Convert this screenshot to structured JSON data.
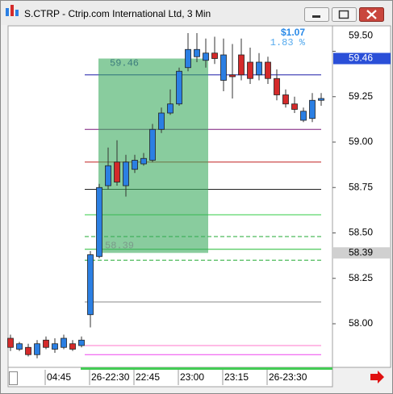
{
  "chart_data": {
    "type": "candlestick",
    "title": "S.CTRP - Ctrip.com International Ltd, 3 Min",
    "categories": [
      null,
      null,
      null,
      null,
      "04:45",
      null,
      null,
      null,
      null,
      "26-22:30",
      null,
      null,
      null,
      null,
      "22:45",
      null,
      null,
      null,
      null,
      "23:00",
      null,
      null,
      null,
      null,
      "23:15",
      null,
      null,
      null,
      null,
      "26-23:30",
      null,
      null,
      null,
      null,
      null,
      null
    ],
    "open": [
      57.92,
      57.86,
      57.87,
      57.83,
      57.91,
      57.86,
      57.87,
      57.89,
      57.88,
      58.05,
      58.37,
      58.76,
      58.89,
      58.76,
      58.85,
      58.88,
      58.9,
      59.07,
      59.16,
      59.21,
      59.41,
      59.47,
      59.45,
      59.49,
      59.34,
      59.37,
      59.48,
      59.44,
      59.37,
      59.44,
      59.35,
      59.26,
      59.21,
      59.12,
      59.13,
      59.23
    ],
    "high": [
      57.94,
      57.9,
      57.89,
      57.91,
      57.93,
      57.92,
      57.94,
      57.91,
      57.93,
      58.4,
      58.77,
      58.97,
      59.01,
      58.93,
      58.93,
      58.94,
      59.1,
      59.19,
      59.29,
      59.41,
      59.6,
      59.6,
      59.57,
      59.58,
      59.57,
      59.54,
      59.57,
      59.52,
      59.49,
      59.47,
      59.4,
      59.29,
      59.25,
      59.19,
      59.27,
      59.27
    ],
    "low": [
      57.85,
      57.85,
      57.82,
      57.81,
      57.86,
      57.84,
      57.86,
      57.85,
      57.87,
      57.98,
      58.36,
      58.74,
      58.76,
      58.7,
      58.83,
      58.87,
      58.89,
      59.05,
      59.15,
      59.2,
      59.39,
      59.44,
      59.41,
      59.43,
      59.28,
      59.24,
      59.34,
      59.32,
      59.34,
      59.32,
      59.23,
      59.19,
      59.16,
      59.11,
      59.11,
      59.2
    ],
    "close": [
      57.87,
      57.89,
      57.83,
      57.89,
      57.87,
      57.89,
      57.92,
      57.86,
      57.91,
      58.38,
      58.75,
      58.87,
      58.78,
      58.89,
      58.9,
      58.91,
      59.07,
      59.16,
      59.21,
      59.39,
      59.51,
      59.51,
      59.49,
      59.46,
      59.48,
      59.36,
      59.37,
      59.35,
      59.44,
      59.35,
      59.26,
      59.21,
      59.18,
      59.17,
      59.23,
      59.24
    ],
    "up_color": "#2b7fe3",
    "down_color": "#d42a2a",
    "ylim": [
      57.76,
      59.64
    ],
    "yticks": [
      {
        "value": 58,
        "label": "58.00"
      },
      {
        "value": 58.25,
        "label": "58.25"
      },
      {
        "value": 58.5,
        "label": "58.50"
      },
      {
        "value": 58.75,
        "label": "58.75"
      },
      {
        "value": 59,
        "label": "59.00"
      },
      {
        "value": 59.25,
        "label": "59.25"
      },
      {
        "value": 59.5,
        "label": "59.50"
      }
    ],
    "levels": {
      "values": [
        59.37,
        59.07,
        58.89,
        58.74,
        58.6,
        58.48,
        58.41,
        58.35,
        58.12,
        57.88,
        57.83
      ],
      "colors": [
        "#1c1ca8",
        "#7b1c7b",
        "#c02020",
        "#222222",
        "#33cc44",
        "#22aa33",
        "#22bb33",
        "#22aa33",
        "#888888",
        "#ff77cc",
        "#ee44ee"
      ],
      "dashed": [
        false,
        false,
        false,
        false,
        false,
        true,
        false,
        true,
        false,
        false,
        false
      ]
    },
    "measure": {
      "top": 59.46,
      "top_label": "59.46",
      "bottom": 58.39,
      "bottom_label": "58.39",
      "change_label": "$1.07",
      "percent_label": "1.83 %",
      "color": "#3aaa5e"
    }
  }
}
